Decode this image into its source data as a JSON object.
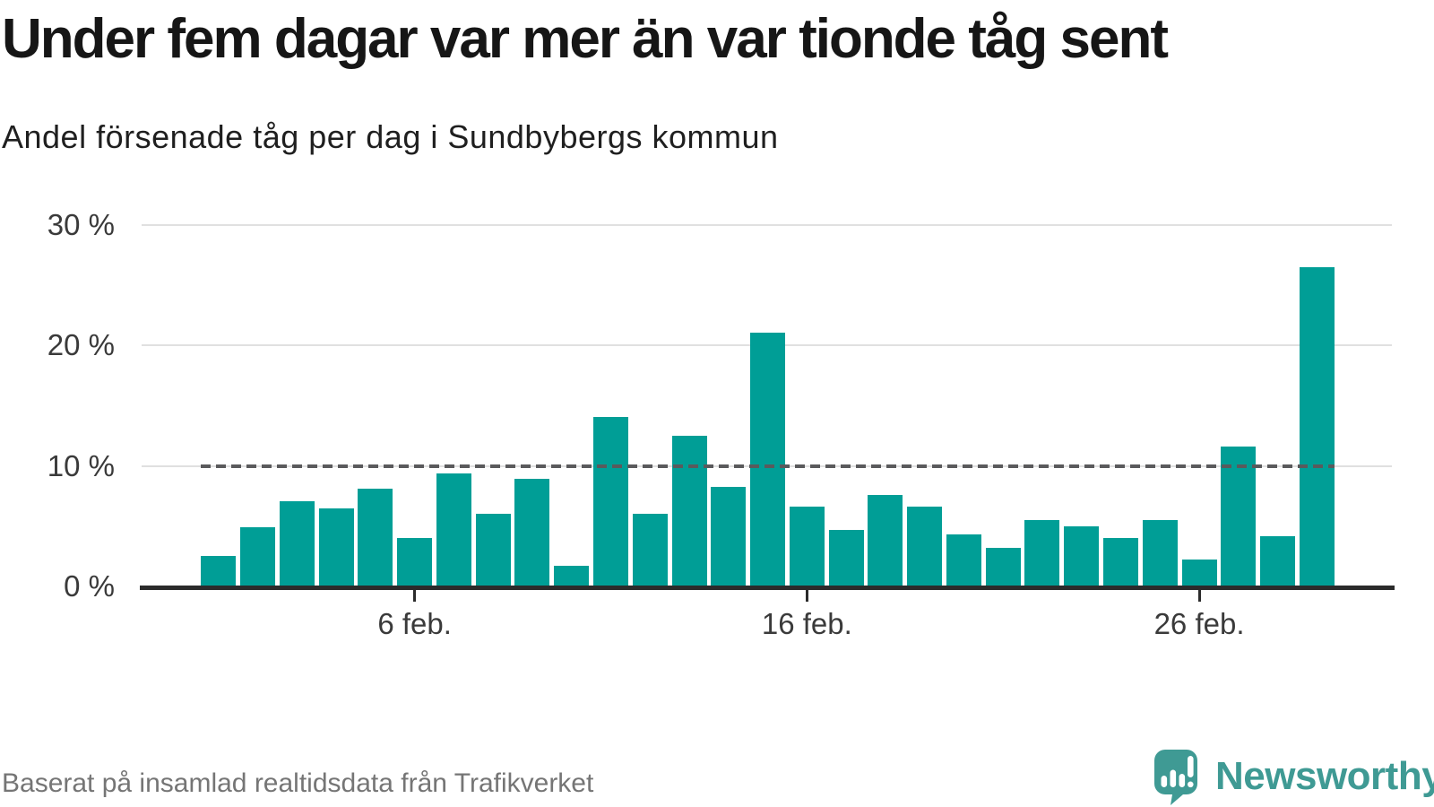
{
  "header": {
    "title": "Under fem dagar var mer än var tionde tåg sent",
    "subtitle": "Andel försenade tåg per dag i Sundbybergs kommun"
  },
  "footer": {
    "source": "Baserat på insamlad realtidsdata från Trafikverket",
    "brand": "Newsworthy",
    "logo_icon": "speech-bubble-bar-chart-exclamation-icon"
  },
  "colors": {
    "bar": "#009E96",
    "title": "#161616",
    "axis": "#2b2b2b",
    "gridline": "#e0e0e0",
    "reference_line": "#5a5a5c",
    "tick_label": "#3a3a3a",
    "source_text": "#757575",
    "logo": "#3f9a94"
  },
  "chart_data": {
    "type": "bar",
    "title": "Under fem dagar var mer än var tionde tåg sent",
    "subtitle": "Andel försenade tåg per dag i Sundbybergs kommun",
    "unit": "%",
    "categories": [
      "1 feb.",
      "2 feb.",
      "3 feb.",
      "4 feb.",
      "5 feb.",
      "6 feb.",
      "7 feb.",
      "8 feb.",
      "9 feb.",
      "10 feb.",
      "11 feb.",
      "12 feb.",
      "13 feb.",
      "14 feb.",
      "15 feb.",
      "16 feb.",
      "17 feb.",
      "18 feb.",
      "19 feb.",
      "20 feb.",
      "21 feb.",
      "22 feb.",
      "23 feb.",
      "24 feb.",
      "25 feb.",
      "26 feb.",
      "27 feb.",
      "28 feb.",
      "29 feb."
    ],
    "values": [
      2.5,
      4.9,
      7.1,
      6.5,
      8.1,
      4.0,
      9.4,
      6.0,
      8.9,
      1.7,
      14.1,
      6.0,
      12.5,
      8.3,
      21.1,
      6.6,
      4.7,
      7.6,
      6.6,
      4.3,
      3.2,
      5.5,
      5.0,
      4.0,
      5.5,
      2.2,
      11.6,
      4.2,
      26.5
    ],
    "ylim": [
      0,
      30
    ],
    "grid": "horizontal",
    "legend": "none",
    "y_ticks": [
      {
        "value": 0,
        "label": "0 %"
      },
      {
        "value": 10,
        "label": "10 %"
      },
      {
        "value": 20,
        "label": "20 %"
      },
      {
        "value": 30,
        "label": "30 %"
      }
    ],
    "x_ticks": [
      {
        "index": 5,
        "label": "6 feb."
      },
      {
        "index": 15,
        "label": "16 feb."
      },
      {
        "index": 25,
        "label": "26 feb."
      }
    ],
    "reference_line": {
      "value": 10,
      "style": "dashed",
      "color": "#5a5a5c"
    }
  }
}
